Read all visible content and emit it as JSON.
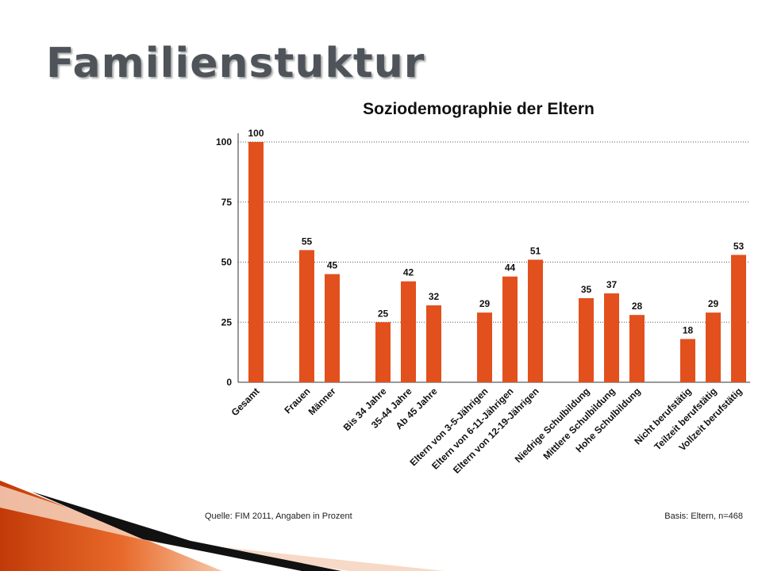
{
  "slide": {
    "title": "Familienstuktur"
  },
  "chart_data": {
    "type": "bar",
    "title": "Soziodemographie der Eltern",
    "xlabel": "",
    "ylabel": "",
    "ylim": [
      0,
      100
    ],
    "yticks": [
      0,
      25,
      50,
      75,
      100
    ],
    "grid": "dotted horizontal",
    "bar_color": "#e2501d",
    "categories": [
      "Gesamt",
      "Frauen",
      "Männer",
      "Bis 34 Jahre",
      "35-44 Jahre",
      "Ab 45 Jahre",
      "Eltern von 3-5-Jährigen",
      "Eltern von 6-11-Jährigen",
      "Eltern von 12-19-Jährigen",
      "Niedrige Schulbildung",
      "Mittlere Schulbildung",
      "Hohe Schulbildung",
      "Nicht berufstätig",
      "Teilzeit berufstätig",
      "Vollzeit berufstätig"
    ],
    "values": [
      100,
      55,
      45,
      25,
      42,
      32,
      29,
      44,
      51,
      35,
      37,
      28,
      18,
      29,
      53
    ],
    "groups": [
      1,
      2,
      3,
      3,
      3,
      3
    ],
    "source": "Quelle: FIM 2011,  Angaben in Prozent",
    "base": "Basis: Eltern, n=468"
  },
  "colors": {
    "bar": "#e2501d",
    "title": "#4e5459",
    "corner_accent": "#d8460c"
  }
}
